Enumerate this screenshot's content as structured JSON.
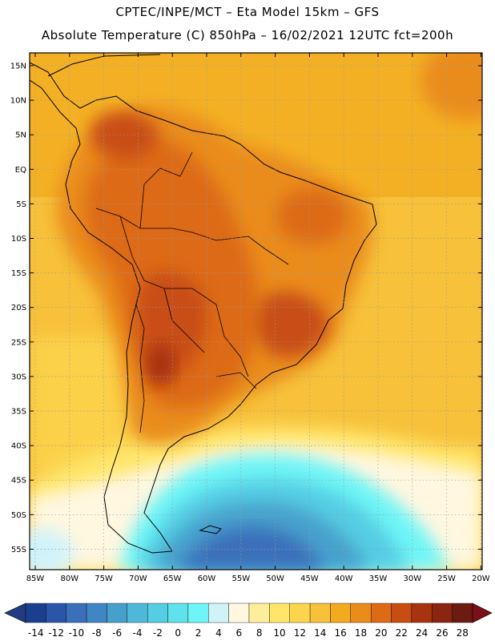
{
  "header": {
    "line1": "CPTEC/INPE/MCT –  Eta Model 15km – GFS",
    "line2": "Absolute Temperature (C) 850hPa – 16/02/2021 12UTC fct=200h"
  },
  "map": {
    "lat_labels": [
      "15N",
      "10N",
      "5N",
      "EQ",
      "5S",
      "10S",
      "15S",
      "20S",
      "25S",
      "30S",
      "35S",
      "40S",
      "45S",
      "50S",
      "55S"
    ],
    "lon_labels": [
      "85W",
      "80W",
      "75W",
      "70W",
      "65W",
      "60W",
      "55W",
      "50W",
      "45W",
      "40W",
      "35W",
      "30W",
      "25W",
      "20W"
    ]
  },
  "colorbar": {
    "labels": [
      "-14",
      "-12",
      "-10",
      "-8",
      "-6",
      "-4",
      "-2",
      "0",
      "2",
      "4",
      "6",
      "8",
      "10",
      "12",
      "14",
      "16",
      "18",
      "20",
      "22",
      "24",
      "26",
      "28"
    ],
    "colors": [
      "#1a3f8f",
      "#2a55a8",
      "#3b6fba",
      "#3f86c4",
      "#46a0cc",
      "#4fb8d8",
      "#55cde3",
      "#5ee3ec",
      "#6ef5f7",
      "#d0f3fa",
      "#fff7e0",
      "#ffee99",
      "#ffe66b",
      "#fcd54d",
      "#f7c13a",
      "#f2ab1f",
      "#ea8c1a",
      "#dd6a14",
      "#c84d12",
      "#a83310",
      "#8a2510",
      "#6b1b10"
    ],
    "under_color": "#233b82",
    "over_color": "#7a0f1a"
  }
}
